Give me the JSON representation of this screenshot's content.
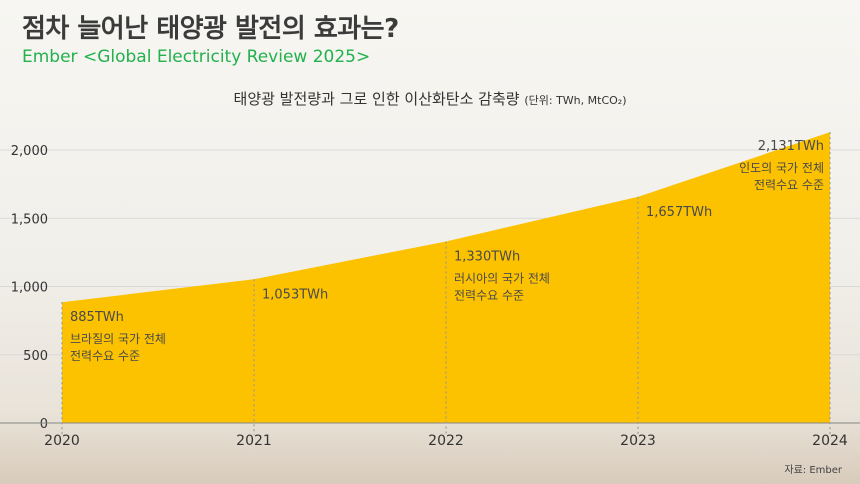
{
  "header": {
    "title": "점차 늘어난 태양광 발전의 효과는?",
    "subtitle": "Ember <Global Electricity Review 2025>"
  },
  "chart_title": {
    "main": "태양광 발전량과 그로 인한 이산화탄소 감축량",
    "unit": "(단위: TWh, MtCO₂)"
  },
  "source": "자료: Ember",
  "colors": {
    "area": "#fcc200",
    "axis_text": "#333333",
    "grid": "#d9d9d9",
    "annotation_line": "#9a9a9a"
  },
  "chart_data": {
    "type": "area",
    "title": "태양광 발전량과 그로 인한 이산화탄소 감축량",
    "x": [
      "2020",
      "2021",
      "2022",
      "2023",
      "2024"
    ],
    "values": [
      885,
      1053,
      1330,
      1657,
      2131
    ],
    "ylim": [
      0,
      2000
    ],
    "yticks": [
      0,
      500,
      1000,
      1500,
      2000
    ],
    "ytick_labels": [
      "0",
      "500",
      "1,000",
      "1,500",
      "2,000"
    ],
    "grid": true,
    "annotations": [
      {
        "x": "2020",
        "value_label": "885TWh",
        "note_lines": [
          "브라질의 국가 전체",
          "전력수요 수준"
        ]
      },
      {
        "x": "2021",
        "value_label": "1,053TWh",
        "note_lines": []
      },
      {
        "x": "2022",
        "value_label": "1,330TWh",
        "note_lines": [
          "러시아의 국가 전체",
          "전력수요 수준"
        ]
      },
      {
        "x": "2023",
        "value_label": "1,657TWh",
        "note_lines": []
      },
      {
        "x": "2024",
        "value_label": "2,131TWh",
        "note_lines": [
          "인도의 국가 전체",
          "전력수요 수준"
        ]
      }
    ]
  }
}
